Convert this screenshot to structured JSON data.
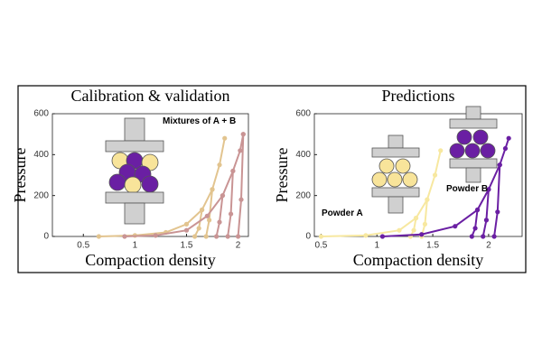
{
  "chart_data": [
    {
      "type": "line",
      "title": "Calibration & validation",
      "x_label": "Compaction density",
      "y_label": "Pressure",
      "xlim": [
        0.2,
        2.1
      ],
      "ylim": [
        0,
        600
      ],
      "xticks": [
        0.5,
        1,
        1.5,
        2
      ],
      "yticks": [
        0,
        200,
        400,
        600
      ],
      "annotations": [
        "Mixtures of A + B"
      ],
      "series": [
        {
          "color": "#e2c48f",
          "x": [
            0.65,
            1.0,
            1.3,
            1.5,
            1.65,
            1.75,
            1.82,
            1.87
          ],
          "values": [
            0,
            5,
            20,
            60,
            130,
            230,
            350,
            480
          ]
        },
        {
          "color": "#e2c48f",
          "x": [
            1.65,
            1.62,
            1.58
          ],
          "values": [
            130,
            40,
            0
          ]
        },
        {
          "color": "#e2c48f",
          "x": [
            1.75,
            1.72,
            1.69
          ],
          "values": [
            230,
            80,
            0
          ]
        },
        {
          "color": "#c99494",
          "x": [
            0.9,
            1.2,
            1.5,
            1.7,
            1.85,
            1.95,
            2.02,
            2.05
          ],
          "values": [
            0,
            5,
            30,
            100,
            200,
            320,
            420,
            500
          ]
        },
        {
          "color": "#c99494",
          "x": [
            1.85,
            1.82,
            1.79
          ],
          "values": [
            200,
            70,
            0
          ]
        },
        {
          "color": "#c99494",
          "x": [
            1.95,
            1.93,
            1.9
          ],
          "values": [
            320,
            110,
            0
          ]
        },
        {
          "color": "#c99494",
          "x": [
            2.05,
            2.03,
            2.0
          ],
          "values": [
            500,
            180,
            0
          ]
        }
      ]
    },
    {
      "type": "line",
      "title": "Predictions",
      "x_label": "Compaction density",
      "y_label": "Pressure",
      "xlim": [
        0.44,
        2.3
      ],
      "ylim": [
        0,
        600
      ],
      "xticks": [
        0.5,
        1,
        1.5,
        2
      ],
      "yticks": [
        0,
        200,
        400,
        600
      ],
      "annotations": [
        "Powder A",
        "Powder B"
      ],
      "series": [
        {
          "color": "#f7e8a0",
          "x": [
            0.5,
            0.9,
            1.2,
            1.35,
            1.45,
            1.52,
            1.57
          ],
          "values": [
            0,
            5,
            30,
            90,
            180,
            300,
            420
          ]
        },
        {
          "color": "#f7e8a0",
          "x": [
            1.35,
            1.33,
            1.3
          ],
          "values": [
            90,
            30,
            0
          ]
        },
        {
          "color": "#f7e8a0",
          "x": [
            1.45,
            1.43,
            1.4
          ],
          "values": [
            180,
            60,
            0
          ]
        },
        {
          "color": "#6a1fa3",
          "x": [
            1.05,
            1.4,
            1.7,
            1.9,
            2.0,
            2.1,
            2.15,
            2.18
          ],
          "values": [
            0,
            10,
            50,
            130,
            230,
            350,
            430,
            480
          ]
        },
        {
          "color": "#6a1fa3",
          "x": [
            1.9,
            1.88,
            1.85
          ],
          "values": [
            130,
            40,
            0
          ]
        },
        {
          "color": "#6a1fa3",
          "x": [
            2.0,
            1.98,
            1.95
          ],
          "values": [
            230,
            80,
            0
          ]
        },
        {
          "color": "#6a1fa3",
          "x": [
            2.1,
            2.08,
            2.05
          ],
          "values": [
            350,
            120,
            0
          ]
        }
      ]
    }
  ]
}
